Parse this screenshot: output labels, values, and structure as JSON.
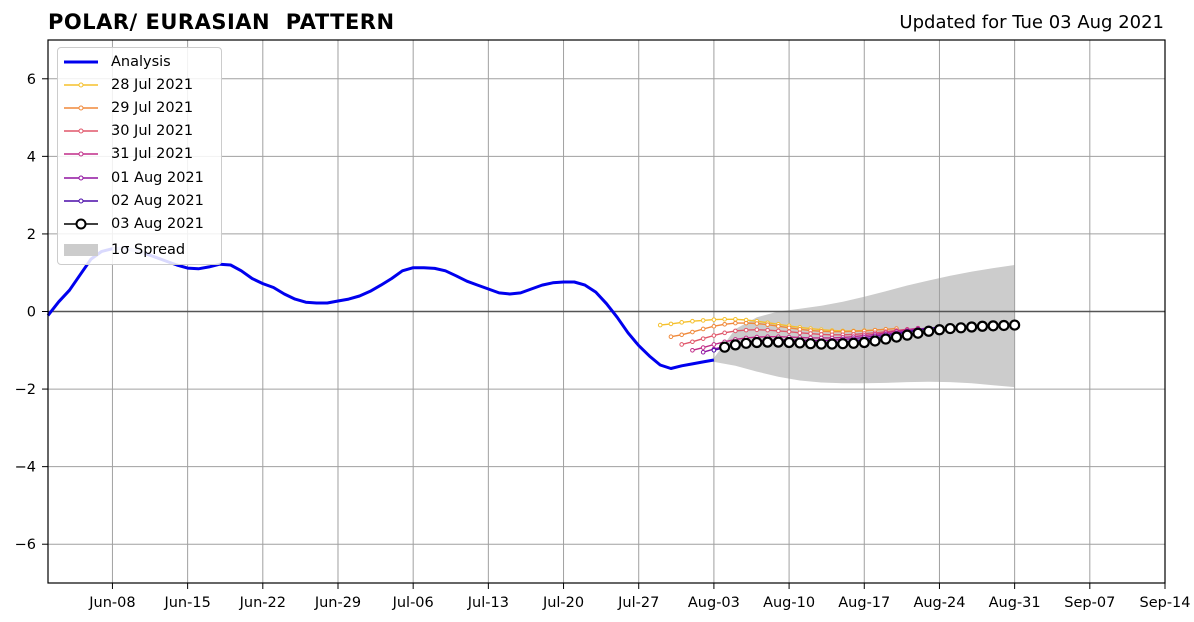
{
  "title": "POLAR/ EURASIAN  PATTERN",
  "updated": "Updated for Tue 03 Aug 2021",
  "legend": {
    "analysis": "Analysis",
    "f1": "28 Jul 2021",
    "f2": "29 Jul 2021",
    "f3": "30 Jul 2021",
    "f4": "31 Jul 2021",
    "f5": "01 Aug 2021",
    "f6": "02 Aug 2021",
    "f7": "03 Aug 2021",
    "spread": "1σ Spread"
  },
  "chart_data": {
    "type": "line",
    "title": "POLAR/ EURASIAN  PATTERN",
    "x_unit": "day offset from Jun-08",
    "xlim": [
      -6,
      98
    ],
    "ylim": [
      -7,
      7
    ],
    "grid": true,
    "legend_position": "upper-left",
    "x_ticks": [
      {
        "day": 0,
        "label": "Jun-08"
      },
      {
        "day": 7,
        "label": "Jun-15"
      },
      {
        "day": 14,
        "label": "Jun-22"
      },
      {
        "day": 21,
        "label": "Jun-29"
      },
      {
        "day": 28,
        "label": "Jul-06"
      },
      {
        "day": 35,
        "label": "Jul-13"
      },
      {
        "day": 42,
        "label": "Jul-20"
      },
      {
        "day": 49,
        "label": "Jul-27"
      },
      {
        "day": 56,
        "label": "Aug-03"
      },
      {
        "day": 63,
        "label": "Aug-10"
      },
      {
        "day": 70,
        "label": "Aug-17"
      },
      {
        "day": 77,
        "label": "Aug-24"
      },
      {
        "day": 84,
        "label": "Aug-31"
      },
      {
        "day": 91,
        "label": "Sep-07"
      },
      {
        "day": 98,
        "label": "Sep-14"
      }
    ],
    "y_ticks": [
      {
        "v": -6,
        "label": "−6"
      },
      {
        "v": -4,
        "label": "−4"
      },
      {
        "v": -2,
        "label": "−2"
      },
      {
        "v": 0,
        "label": "0"
      },
      {
        "v": 2,
        "label": "2"
      },
      {
        "v": 4,
        "label": "4"
      },
      {
        "v": 6,
        "label": "6"
      }
    ],
    "analysis": {
      "name": "Analysis",
      "color": "#0000ee",
      "x": [
        -6,
        -5,
        -4,
        -3,
        -2,
        -1,
        0,
        1,
        2,
        3,
        4,
        5,
        6,
        7,
        8,
        9,
        10,
        11,
        12,
        13,
        14,
        15,
        16,
        17,
        18,
        19,
        20,
        21,
        22,
        23,
        24,
        25,
        26,
        27,
        28,
        29,
        30,
        31,
        32,
        33,
        34,
        35,
        36,
        37,
        38,
        39,
        40,
        41,
        42,
        43,
        44,
        45,
        46,
        47,
        48,
        49,
        50,
        51,
        52,
        53,
        54,
        55,
        56
      ],
      "y": [
        -0.1,
        0.25,
        0.55,
        0.95,
        1.35,
        1.55,
        1.62,
        1.63,
        1.58,
        1.5,
        1.4,
        1.3,
        1.2,
        1.12,
        1.1,
        1.15,
        1.22,
        1.2,
        1.05,
        0.85,
        0.72,
        0.62,
        0.45,
        0.32,
        0.24,
        0.22,
        0.22,
        0.27,
        0.32,
        0.4,
        0.52,
        0.68,
        0.85,
        1.05,
        1.13,
        1.13,
        1.11,
        1.05,
        0.92,
        0.78,
        0.68,
        0.58,
        0.48,
        0.45,
        0.48,
        0.58,
        0.68,
        0.74,
        0.76,
        0.76,
        0.68,
        0.5,
        0.2,
        -0.15,
        -0.55,
        -0.88,
        -1.15,
        -1.38,
        -1.47,
        -1.4,
        -1.35,
        -1.3,
        -1.25
      ]
    },
    "analysis_faded_range": [
      0,
      3
    ],
    "spread": {
      "name": "1σ Spread",
      "color": "#cccccc",
      "x": [
        56,
        58,
        60,
        62,
        64,
        66,
        68,
        70,
        72,
        74,
        76,
        78,
        80,
        82,
        84
      ],
      "upper": [
        -1.2,
        -0.45,
        -0.15,
        0.0,
        0.07,
        0.15,
        0.25,
        0.38,
        0.52,
        0.67,
        0.8,
        0.92,
        1.03,
        1.12,
        1.2
      ],
      "lower": [
        -1.3,
        -1.4,
        -1.55,
        -1.68,
        -1.78,
        -1.83,
        -1.85,
        -1.85,
        -1.84,
        -1.82,
        -1.81,
        -1.82,
        -1.85,
        -1.9,
        -1.95
      ]
    },
    "forecasts": [
      {
        "name": "28 Jul 2021",
        "color": "#f5c02c",
        "x": [
          51,
          52,
          53,
          54,
          55,
          56,
          57,
          58,
          59,
          60,
          61,
          62,
          63,
          64,
          65,
          66,
          67,
          68,
          69,
          70,
          71,
          72
        ],
        "y": [
          -0.35,
          -0.32,
          -0.28,
          -0.25,
          -0.23,
          -0.21,
          -0.2,
          -0.2,
          -0.22,
          -0.25,
          -0.29,
          -0.33,
          -0.37,
          -0.41,
          -0.44,
          -0.47,
          -0.49,
          -0.5,
          -0.5,
          -0.49,
          -0.48,
          -0.46
        ]
      },
      {
        "name": "29 Jul 2021",
        "color": "#f0893a",
        "x": [
          52,
          53,
          54,
          55,
          56,
          57,
          58,
          59,
          60,
          61,
          62,
          63,
          64,
          65,
          66,
          67,
          68,
          69,
          70,
          71,
          72,
          73
        ],
        "y": [
          -0.65,
          -0.6,
          -0.53,
          -0.45,
          -0.38,
          -0.33,
          -0.3,
          -0.3,
          -0.31,
          -0.34,
          -0.38,
          -0.42,
          -0.46,
          -0.49,
          -0.51,
          -0.52,
          -0.52,
          -0.51,
          -0.5,
          -0.48,
          -0.46,
          -0.44
        ]
      },
      {
        "name": "30 Jul 2021",
        "color": "#e0566a",
        "x": [
          53,
          54,
          55,
          56,
          57,
          58,
          59,
          60,
          61,
          62,
          63,
          64,
          65,
          66,
          67,
          68,
          69,
          70,
          71,
          72,
          73,
          74
        ],
        "y": [
          -0.85,
          -0.78,
          -0.7,
          -0.62,
          -0.55,
          -0.5,
          -0.48,
          -0.47,
          -0.48,
          -0.5,
          -0.52,
          -0.55,
          -0.57,
          -0.59,
          -0.6,
          -0.6,
          -0.59,
          -0.57,
          -0.55,
          -0.52,
          -0.49,
          -0.46
        ]
      },
      {
        "name": "31 Jul 2021",
        "color": "#c02c88",
        "x": [
          54,
          55,
          56,
          57,
          58,
          59,
          60,
          61,
          62,
          63,
          64,
          65,
          66,
          67,
          68,
          69,
          70,
          71,
          72,
          73,
          74,
          75
        ],
        "y": [
          -1.0,
          -0.93,
          -0.85,
          -0.78,
          -0.72,
          -0.68,
          -0.66,
          -0.65,
          -0.65,
          -0.66,
          -0.67,
          -0.68,
          -0.68,
          -0.68,
          -0.67,
          -0.65,
          -0.62,
          -0.59,
          -0.55,
          -0.51,
          -0.47,
          -0.43
        ]
      },
      {
        "name": "01 Aug 2021",
        "color": "#9013a0",
        "x": [
          55,
          56,
          57,
          58,
          59,
          60,
          61,
          62,
          63,
          64,
          65,
          66,
          67,
          68,
          69,
          70,
          71,
          72,
          73,
          74,
          75,
          76
        ],
        "y": [
          -1.05,
          -0.97,
          -0.9,
          -0.84,
          -0.79,
          -0.76,
          -0.74,
          -0.73,
          -0.73,
          -0.74,
          -0.75,
          -0.75,
          -0.74,
          -0.72,
          -0.7,
          -0.67,
          -0.63,
          -0.59,
          -0.55,
          -0.5,
          -0.46,
          -0.42
        ]
      },
      {
        "name": "02 Aug 2021",
        "color": "#4a0aa8",
        "x": [
          56,
          57,
          58,
          59,
          60,
          61,
          62,
          63,
          64,
          65,
          66,
          67,
          68,
          69,
          70,
          71,
          72,
          73,
          74,
          75,
          76,
          77
        ],
        "y": [
          -1.0,
          -0.93,
          -0.87,
          -0.83,
          -0.8,
          -0.79,
          -0.79,
          -0.8,
          -0.81,
          -0.82,
          -0.82,
          -0.81,
          -0.79,
          -0.76,
          -0.72,
          -0.68,
          -0.63,
          -0.58,
          -0.53,
          -0.48,
          -0.44,
          -0.4
        ]
      },
      {
        "name": "03 Aug 2021",
        "color": "#000000",
        "x": [
          57,
          58,
          59,
          60,
          61,
          62,
          63,
          64,
          65,
          66,
          67,
          68,
          69,
          70,
          71,
          72,
          73,
          74,
          75,
          76,
          77,
          78,
          79,
          80,
          81,
          82,
          83,
          84
        ],
        "y": [
          -0.92,
          -0.86,
          -0.82,
          -0.8,
          -0.79,
          -0.79,
          -0.8,
          -0.81,
          -0.83,
          -0.84,
          -0.84,
          -0.83,
          -0.82,
          -0.8,
          -0.76,
          -0.71,
          -0.66,
          -0.61,
          -0.56,
          -0.51,
          -0.47,
          -0.44,
          -0.42,
          -0.4,
          -0.38,
          -0.37,
          -0.36,
          -0.35
        ]
      }
    ]
  }
}
